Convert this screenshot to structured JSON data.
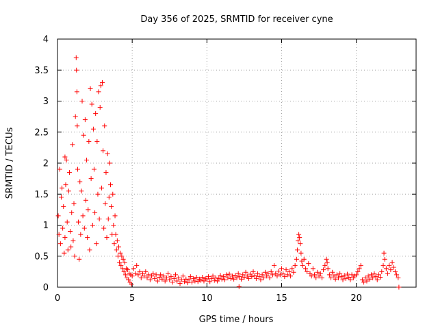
{
  "chart_data": {
    "type": "scatter",
    "title": "Day 356 of 2025, SRMTID for receiver cyne",
    "xlabel": "GPS time / hours",
    "ylabel": "SRMTID / TECUs",
    "xlim": [
      0,
      24
    ],
    "ylim": [
      0,
      4
    ],
    "xticks": [
      0,
      5,
      10,
      15,
      20
    ],
    "xtick_labels": [
      "0",
      "5",
      "10",
      "15",
      "20"
    ],
    "yticks": [
      0,
      0.5,
      1,
      1.5,
      2,
      2.5,
      3,
      3.5,
      4
    ],
    "ytick_labels": [
      "0",
      "0.5",
      "1",
      "1.5",
      "2",
      "2.5",
      "3",
      "3.5",
      "4"
    ],
    "grid": true,
    "marker": "+",
    "series": [
      {
        "name": "SRMTID",
        "color": "#ff0000",
        "points": [
          [
            0.05,
            1.15
          ],
          [
            0.1,
            0.85
          ],
          [
            0.15,
            1.9
          ],
          [
            0.2,
            0.7
          ],
          [
            0.25,
            1.45
          ],
          [
            0.3,
            1.6
          ],
          [
            0.35,
            0.95
          ],
          [
            0.4,
            1.3
          ],
          [
            0.45,
            0.55
          ],
          [
            0.5,
            0.8
          ],
          [
            0.5,
            2.1
          ],
          [
            0.55,
            1.65
          ],
          [
            0.6,
            2.05
          ],
          [
            0.65,
            1.05
          ],
          [
            0.7,
            0.6
          ],
          [
            0.75,
            1.55
          ],
          [
            0.8,
            1.85
          ],
          [
            0.85,
            0.9
          ],
          [
            0.9,
            0.65
          ],
          [
            0.95,
            1.2
          ],
          [
            1.0,
            2.3
          ],
          [
            1.05,
            0.75
          ],
          [
            1.1,
            1.35
          ],
          [
            1.15,
            0.5
          ],
          [
            1.2,
            2.75
          ],
          [
            1.25,
            3.7
          ],
          [
            1.27,
            3.5
          ],
          [
            1.3,
            3.15
          ],
          [
            1.32,
            2.6
          ],
          [
            1.35,
            1.9
          ],
          [
            1.4,
            1.05
          ],
          [
            1.45,
            0.45
          ],
          [
            1.5,
            1.7
          ],
          [
            1.55,
            0.85
          ],
          [
            1.6,
            1.55
          ],
          [
            1.65,
            3.0
          ],
          [
            1.7,
            1.15
          ],
          [
            1.75,
            2.45
          ],
          [
            1.8,
            0.95
          ],
          [
            1.85,
            2.7
          ],
          [
            1.9,
            1.4
          ],
          [
            1.95,
            2.05
          ],
          [
            2.0,
            0.8
          ],
          [
            2.05,
            1.25
          ],
          [
            2.1,
            2.35
          ],
          [
            2.15,
            0.6
          ],
          [
            2.2,
            3.2
          ],
          [
            2.25,
            1.75
          ],
          [
            2.3,
            2.95
          ],
          [
            2.35,
            1.0
          ],
          [
            2.4,
            2.55
          ],
          [
            2.45,
            1.9
          ],
          [
            2.5,
            1.2
          ],
          [
            2.55,
            2.8
          ],
          [
            2.6,
            0.7
          ],
          [
            2.65,
            2.35
          ],
          [
            2.7,
            1.5
          ],
          [
            2.75,
            3.15
          ],
          [
            2.8,
            1.1
          ],
          [
            2.85,
            2.9
          ],
          [
            2.9,
            3.25
          ],
          [
            2.95,
            1.6
          ],
          [
            3.0,
            3.3
          ],
          [
            3.05,
            2.2
          ],
          [
            3.1,
            0.95
          ],
          [
            3.15,
            2.6
          ],
          [
            3.2,
            1.35
          ],
          [
            3.25,
            1.85
          ],
          [
            3.3,
            0.8
          ],
          [
            3.35,
            2.15
          ],
          [
            3.4,
            1.1
          ],
          [
            3.45,
            1.45
          ],
          [
            3.5,
            2.0
          ],
          [
            3.55,
            1.65
          ],
          [
            3.6,
            1.3
          ],
          [
            3.65,
            0.85
          ],
          [
            3.7,
            1.5
          ],
          [
            3.75,
            1.0
          ],
          [
            3.8,
            0.7
          ],
          [
            3.85,
            1.15
          ],
          [
            3.9,
            0.85
          ],
          [
            3.95,
            0.6
          ],
          [
            4.0,
            0.75
          ],
          [
            4.05,
            0.5
          ],
          [
            4.1,
            0.65
          ],
          [
            4.15,
            0.4
          ],
          [
            4.2,
            0.55
          ],
          [
            4.25,
            0.35
          ],
          [
            4.3,
            0.5
          ],
          [
            4.35,
            0.3
          ],
          [
            4.4,
            0.45
          ],
          [
            4.45,
            0.25
          ],
          [
            4.5,
            0.4
          ],
          [
            4.55,
            0.2
          ],
          [
            4.6,
            0.3
          ],
          [
            4.65,
            0.15
          ],
          [
            4.7,
            0.28
          ],
          [
            4.75,
            0.12
          ],
          [
            4.8,
            0.22
          ],
          [
            4.85,
            0.08
          ],
          [
            4.9,
            0.2
          ],
          [
            4.95,
            0.05
          ],
          [
            5.0,
            0.18
          ],
          [
            5.1,
            0.3
          ],
          [
            5.2,
            0.22
          ],
          [
            5.3,
            0.35
          ],
          [
            5.4,
            0.2
          ],
          [
            5.5,
            0.25
          ],
          [
            5.6,
            0.15
          ],
          [
            5.7,
            0.22
          ],
          [
            5.8,
            0.18
          ],
          [
            5.9,
            0.25
          ],
          [
            6.0,
            0.15
          ],
          [
            6.1,
            0.2
          ],
          [
            6.2,
            0.12
          ],
          [
            6.3,
            0.18
          ],
          [
            6.4,
            0.22
          ],
          [
            6.5,
            0.14
          ],
          [
            6.6,
            0.2
          ],
          [
            6.7,
            0.1
          ],
          [
            6.8,
            0.16
          ],
          [
            6.9,
            0.2
          ],
          [
            7.0,
            0.13
          ],
          [
            7.1,
            0.18
          ],
          [
            7.2,
            0.1
          ],
          [
            7.3,
            0.15
          ],
          [
            7.4,
            0.22
          ],
          [
            7.5,
            0.12
          ],
          [
            7.6,
            0.17
          ],
          [
            7.7,
            0.08
          ],
          [
            7.8,
            0.14
          ],
          [
            7.9,
            0.2
          ],
          [
            8.0,
            0.1
          ],
          [
            8.1,
            0.15
          ],
          [
            8.2,
            0.06
          ],
          [
            8.3,
            0.12
          ],
          [
            8.4,
            0.18
          ],
          [
            8.5,
            0.09
          ],
          [
            8.6,
            0.13
          ],
          [
            8.7,
            0.07
          ],
          [
            8.8,
            0.12
          ],
          [
            8.9,
            0.17
          ],
          [
            9.0,
            0.08
          ],
          [
            9.1,
            0.14
          ],
          [
            9.2,
            0.1
          ],
          [
            9.3,
            0.16
          ],
          [
            9.4,
            0.09
          ],
          [
            9.5,
            0.13
          ],
          [
            9.6,
            0.11
          ],
          [
            9.7,
            0.16
          ],
          [
            9.8,
            0.1
          ],
          [
            9.9,
            0.14
          ],
          [
            10.0,
            0.12
          ],
          [
            10.1,
            0.17
          ],
          [
            10.2,
            0.09
          ],
          [
            10.3,
            0.14
          ],
          [
            10.4,
            0.18
          ],
          [
            10.5,
            0.11
          ],
          [
            10.6,
            0.15
          ],
          [
            10.7,
            0.1
          ],
          [
            10.8,
            0.14
          ],
          [
            10.9,
            0.19
          ],
          [
            11.0,
            0.13
          ],
          [
            11.1,
            0.17
          ],
          [
            11.2,
            0.12
          ],
          [
            11.3,
            0.2
          ],
          [
            11.4,
            0.15
          ],
          [
            11.5,
            0.21
          ],
          [
            11.6,
            0.14
          ],
          [
            11.7,
            0.18
          ],
          [
            11.8,
            0.13
          ],
          [
            11.9,
            0.19
          ],
          [
            12.0,
            0.15
          ],
          [
            12.1,
            0.22
          ],
          [
            12.15,
            0.01
          ],
          [
            12.2,
            0.17
          ],
          [
            12.3,
            0.13
          ],
          [
            12.4,
            0.2
          ],
          [
            12.5,
            0.16
          ],
          [
            12.6,
            0.24
          ],
          [
            12.7,
            0.18
          ],
          [
            12.8,
            0.14
          ],
          [
            12.9,
            0.21
          ],
          [
            13.0,
            0.17
          ],
          [
            13.1,
            0.25
          ],
          [
            13.2,
            0.19
          ],
          [
            13.3,
            0.14
          ],
          [
            13.4,
            0.22
          ],
          [
            13.5,
            0.17
          ],
          [
            13.6,
            0.12
          ],
          [
            13.7,
            0.2
          ],
          [
            13.8,
            0.15
          ],
          [
            13.9,
            0.24
          ],
          [
            14.0,
            0.18
          ],
          [
            14.1,
            0.22
          ],
          [
            14.2,
            0.15
          ],
          [
            14.3,
            0.25
          ],
          [
            14.4,
            0.2
          ],
          [
            14.5,
            0.35
          ],
          [
            14.6,
            0.22
          ],
          [
            14.7,
            0.18
          ],
          [
            14.8,
            0.26
          ],
          [
            14.9,
            0.2
          ],
          [
            15.0,
            0.3
          ],
          [
            15.1,
            0.22
          ],
          [
            15.2,
            0.17
          ],
          [
            15.3,
            0.28
          ],
          [
            15.4,
            0.2
          ],
          [
            15.5,
            0.25
          ],
          [
            15.6,
            0.18
          ],
          [
            15.7,
            0.3
          ],
          [
            15.8,
            0.24
          ],
          [
            15.9,
            0.35
          ],
          [
            16.0,
            0.45
          ],
          [
            16.05,
            0.6
          ],
          [
            16.1,
            0.75
          ],
          [
            16.15,
            0.85
          ],
          [
            16.2,
            0.8
          ],
          [
            16.25,
            0.7
          ],
          [
            16.3,
            0.55
          ],
          [
            16.35,
            0.42
          ],
          [
            16.4,
            0.35
          ],
          [
            16.5,
            0.45
          ],
          [
            16.6,
            0.3
          ],
          [
            16.7,
            0.25
          ],
          [
            16.8,
            0.38
          ],
          [
            16.9,
            0.22
          ],
          [
            17.0,
            0.18
          ],
          [
            17.1,
            0.3
          ],
          [
            17.2,
            0.2
          ],
          [
            17.3,
            0.15
          ],
          [
            17.4,
            0.24
          ],
          [
            17.5,
            0.18
          ],
          [
            17.6,
            0.22
          ],
          [
            17.7,
            0.15
          ],
          [
            17.8,
            0.28
          ],
          [
            17.9,
            0.35
          ],
          [
            18.0,
            0.45
          ],
          [
            18.05,
            0.4
          ],
          [
            18.1,
            0.3
          ],
          [
            18.2,
            0.2
          ],
          [
            18.3,
            0.15
          ],
          [
            18.4,
            0.24
          ],
          [
            18.5,
            0.18
          ],
          [
            18.6,
            0.13
          ],
          [
            18.7,
            0.2
          ],
          [
            18.8,
            0.15
          ],
          [
            18.9,
            0.22
          ],
          [
            19.0,
            0.17
          ],
          [
            19.1,
            0.12
          ],
          [
            19.2,
            0.19
          ],
          [
            19.3,
            0.14
          ],
          [
            19.4,
            0.21
          ],
          [
            19.5,
            0.16
          ],
          [
            19.6,
            0.12
          ],
          [
            19.7,
            0.2
          ],
          [
            19.8,
            0.15
          ],
          [
            19.9,
            0.18
          ],
          [
            20.0,
            0.2
          ],
          [
            20.1,
            0.25
          ],
          [
            20.2,
            0.3
          ],
          [
            20.3,
            0.35
          ],
          [
            20.4,
            0.12
          ],
          [
            20.5,
            0.08
          ],
          [
            20.6,
            0.15
          ],
          [
            20.7,
            0.1
          ],
          [
            20.8,
            0.18
          ],
          [
            20.9,
            0.13
          ],
          [
            21.0,
            0.2
          ],
          [
            21.1,
            0.15
          ],
          [
            21.2,
            0.22
          ],
          [
            21.3,
            0.17
          ],
          [
            21.4,
            0.12
          ],
          [
            21.5,
            0.2
          ],
          [
            21.6,
            0.16
          ],
          [
            21.7,
            0.25
          ],
          [
            21.8,
            0.35
          ],
          [
            21.85,
            0.55
          ],
          [
            21.9,
            0.45
          ],
          [
            22.0,
            0.3
          ],
          [
            22.1,
            0.22
          ],
          [
            22.2,
            0.35
          ],
          [
            22.3,
            0.28
          ],
          [
            22.4,
            0.4
          ],
          [
            22.5,
            0.32
          ],
          [
            22.6,
            0.25
          ],
          [
            22.7,
            0.2
          ],
          [
            22.8,
            0.15
          ],
          [
            22.85,
            0.0
          ]
        ]
      }
    ]
  }
}
